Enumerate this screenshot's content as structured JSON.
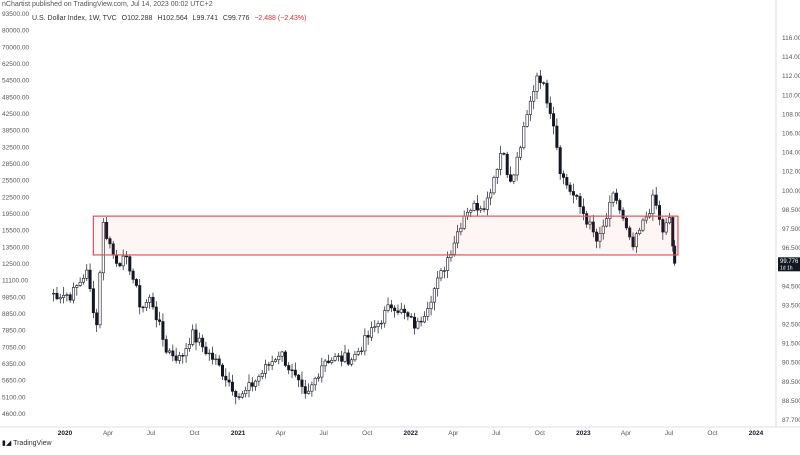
{
  "header": {
    "publisher_line": "nChartist published on TradingView.com, Jul 14, 2023 00:02 UTC+2"
  },
  "symbol_bar": {
    "name": "U.S. Dollar Index, 1W, TVC",
    "open": "O102.288",
    "high": "H102.564",
    "low": "L99.741",
    "close": "C99.776",
    "change": "−2.488 (−2.43%)"
  },
  "footer": {
    "brand": "TradingView"
  },
  "colors": {
    "zone_stroke": "#e8505b",
    "zone_fill": "rgba(232,80,91,0.06)",
    "candle": "#131722",
    "grid": "#f0f3fa",
    "price_badge": "#131722"
  },
  "chart_data": {
    "type": "candlestick",
    "title": "U.S. Dollar Index, 1W, TVC",
    "x_ticks": [
      "2020",
      "Apr",
      "Jul",
      "Oct",
      "2021",
      "Apr",
      "Jul",
      "Oct",
      "2022",
      "Apr",
      "Jul",
      "Oct",
      "2023",
      "Apr",
      "Jul",
      "Oct",
      "2024"
    ],
    "x_ticks_bold": [
      "2020",
      "2021",
      "2022",
      "2023",
      "2024"
    ],
    "right_axis_ticks": [
      "116.00",
      "114.00",
      "112.00",
      "110.00",
      "108.00",
      "106.00",
      "104.00",
      "102.00",
      "100.00",
      "98.500",
      "97.500",
      "96.500",
      "95.500",
      "94.500",
      "93.500",
      "92.500",
      "91.500",
      "90.500",
      "89.500",
      "88.500",
      "87.700"
    ],
    "left_axis_ticks": [
      "93500.00",
      "80000.00",
      "70000.00",
      "62500.00",
      "54500.00",
      "48500.00",
      "42500.00",
      "38500.00",
      "32500.00",
      "28500.00",
      "25500.00",
      "22500.00",
      "19500.00",
      "15500.00",
      "13500.00",
      "12500.00",
      "11100.00",
      "9850.00",
      "8850.00",
      "7850.00",
      "7050.00",
      "6350.00",
      "5650.00",
      "5100.00",
      "4600.00"
    ],
    "y_range": [
      87.7,
      117.5
    ],
    "last_price": "99.776",
    "last_price_sub": "1d 1h",
    "weekly_close_path": [
      {
        "date": "2019-12-01",
        "close": 97.5
      },
      {
        "date": "2020-01-15",
        "close": 97.4
      },
      {
        "date": "2020-02-15",
        "close": 99.2
      },
      {
        "date": "2020-03-09",
        "close": 95.0
      },
      {
        "date": "2020-03-20",
        "close": 102.9
      },
      {
        "date": "2020-04-15",
        "close": 100.1
      },
      {
        "date": "2020-05-15",
        "close": 99.8
      },
      {
        "date": "2020-06-10",
        "close": 96.4
      },
      {
        "date": "2020-07-01",
        "close": 97.2
      },
      {
        "date": "2020-08-01",
        "close": 93.4
      },
      {
        "date": "2020-09-01",
        "close": 92.6
      },
      {
        "date": "2020-09-25",
        "close": 94.5
      },
      {
        "date": "2020-11-15",
        "close": 92.4
      },
      {
        "date": "2021-01-06",
        "close": 89.7
      },
      {
        "date": "2021-03-31",
        "close": 93.2
      },
      {
        "date": "2021-05-25",
        "close": 89.6
      },
      {
        "date": "2021-07-01",
        "close": 92.6
      },
      {
        "date": "2021-09-01",
        "close": 92.7
      },
      {
        "date": "2021-10-01",
        "close": 94.2
      },
      {
        "date": "2021-11-24",
        "close": 96.8
      },
      {
        "date": "2022-01-14",
        "close": 95.0
      },
      {
        "date": "2022-03-07",
        "close": 99.0
      },
      {
        "date": "2022-04-28",
        "close": 103.8
      },
      {
        "date": "2022-06-10",
        "close": 104.3
      },
      {
        "date": "2022-07-14",
        "close": 108.5
      },
      {
        "date": "2022-08-01",
        "close": 105.5
      },
      {
        "date": "2022-09-27",
        "close": 114.2
      },
      {
        "date": "2022-10-28",
        "close": 110.8
      },
      {
        "date": "2022-11-15",
        "close": 106.4
      },
      {
        "date": "2023-01-02",
        "close": 103.5
      },
      {
        "date": "2023-02-01",
        "close": 101.2
      },
      {
        "date": "2023-03-08",
        "close": 105.0
      },
      {
        "date": "2023-04-14",
        "close": 100.8
      },
      {
        "date": "2023-05-31",
        "close": 104.7
      },
      {
        "date": "2023-06-16",
        "close": 102.1
      },
      {
        "date": "2023-07-03",
        "close": 103.0
      },
      {
        "date": "2023-07-13",
        "close": 99.776
      }
    ],
    "annotations": [
      {
        "type": "rectangle",
        "label": "",
        "date_start": "2020-03-01",
        "date_end": "2023-07-20",
        "price_top": 103.3,
        "price_bottom": 100.4
      }
    ]
  }
}
